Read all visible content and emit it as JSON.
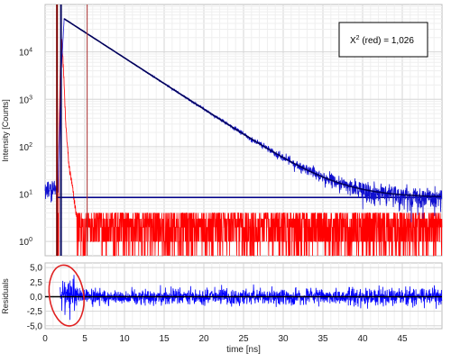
{
  "chart_data": [
    {
      "type": "line",
      "panel": "decay",
      "xlim": [
        0,
        50
      ],
      "ylim": [
        0.5,
        100000
      ],
      "yscale": "log",
      "grid": true,
      "ylabel": "Intensity [Counts]",
      "x_ticks": [
        "0",
        "5",
        "10",
        "15",
        "20",
        "25",
        "30",
        "35",
        "40",
        "45"
      ],
      "y_ticks": [
        {
          "v": 1,
          "base": "10",
          "exp": "0"
        },
        {
          "v": 10,
          "base": "10",
          "exp": "1"
        },
        {
          "v": 100,
          "base": "10",
          "exp": "2"
        },
        {
          "v": 1000,
          "base": "10",
          "exp": "3"
        },
        {
          "v": 10000,
          "base": "10",
          "exp": "4"
        }
      ],
      "annotation": {
        "prefix": "X",
        "sup": "2",
        "text": " (red) = 1,026"
      },
      "markers_x": [
        1.5,
        2.0,
        5.3
      ],
      "series": [
        {
          "role": "irf",
          "color": "#ff0000",
          "baseline": [
            1,
            4
          ],
          "peak_x": [
            1.7,
            2.0,
            2.3,
            2.6,
            3.0,
            3.5,
            4.0
          ],
          "peak_y": [
            50,
            30000,
            5000,
            300,
            40,
            12,
            3
          ]
        },
        {
          "role": "decay",
          "color": "#1010d0",
          "rise_x": [
            1.6,
            2.0,
            2.4
          ],
          "rise_y": [
            8,
            3000,
            50000
          ],
          "peak": 50000,
          "tau_ns": 4.0,
          "background": 8.5,
          "end_x": 50
        },
        {
          "role": "fit",
          "color": "#00005a",
          "peak_x": 2.4,
          "peak_y": 50000,
          "tau_ns": 4.0,
          "background": 8.5
        },
        {
          "role": "background-level",
          "color": "#00008b",
          "y": 8.5
        }
      ]
    },
    {
      "type": "line",
      "panel": "residuals",
      "xlim": [
        0,
        50
      ],
      "ylim": [
        -5.5,
        5.8
      ],
      "grid": true,
      "xlabel": "time [ns]",
      "ylabel": "Residuals",
      "x_ticks": [
        "0",
        "5",
        "10",
        "15",
        "20",
        "25",
        "30",
        "35",
        "40",
        "45"
      ],
      "y_ticks": [
        {
          "v": 5,
          "label": "5,0"
        },
        {
          "v": 2.5,
          "label": "2,5"
        },
        {
          "v": 0,
          "label": "0,0"
        },
        {
          "v": -2.5,
          "label": "-2,5"
        },
        {
          "v": -5,
          "label": "-5,0"
        }
      ],
      "series": [
        {
          "role": "residuals",
          "color": "#0000ff",
          "x_start": 1.9,
          "x_end": 50,
          "amplitude": 1.0
        },
        {
          "role": "zero",
          "color": "#000000",
          "y": 0
        }
      ],
      "highlight": {
        "shape": "ellipse",
        "color": "#e02020",
        "x_center": 2.7,
        "y_center": 0.2
      }
    }
  ]
}
